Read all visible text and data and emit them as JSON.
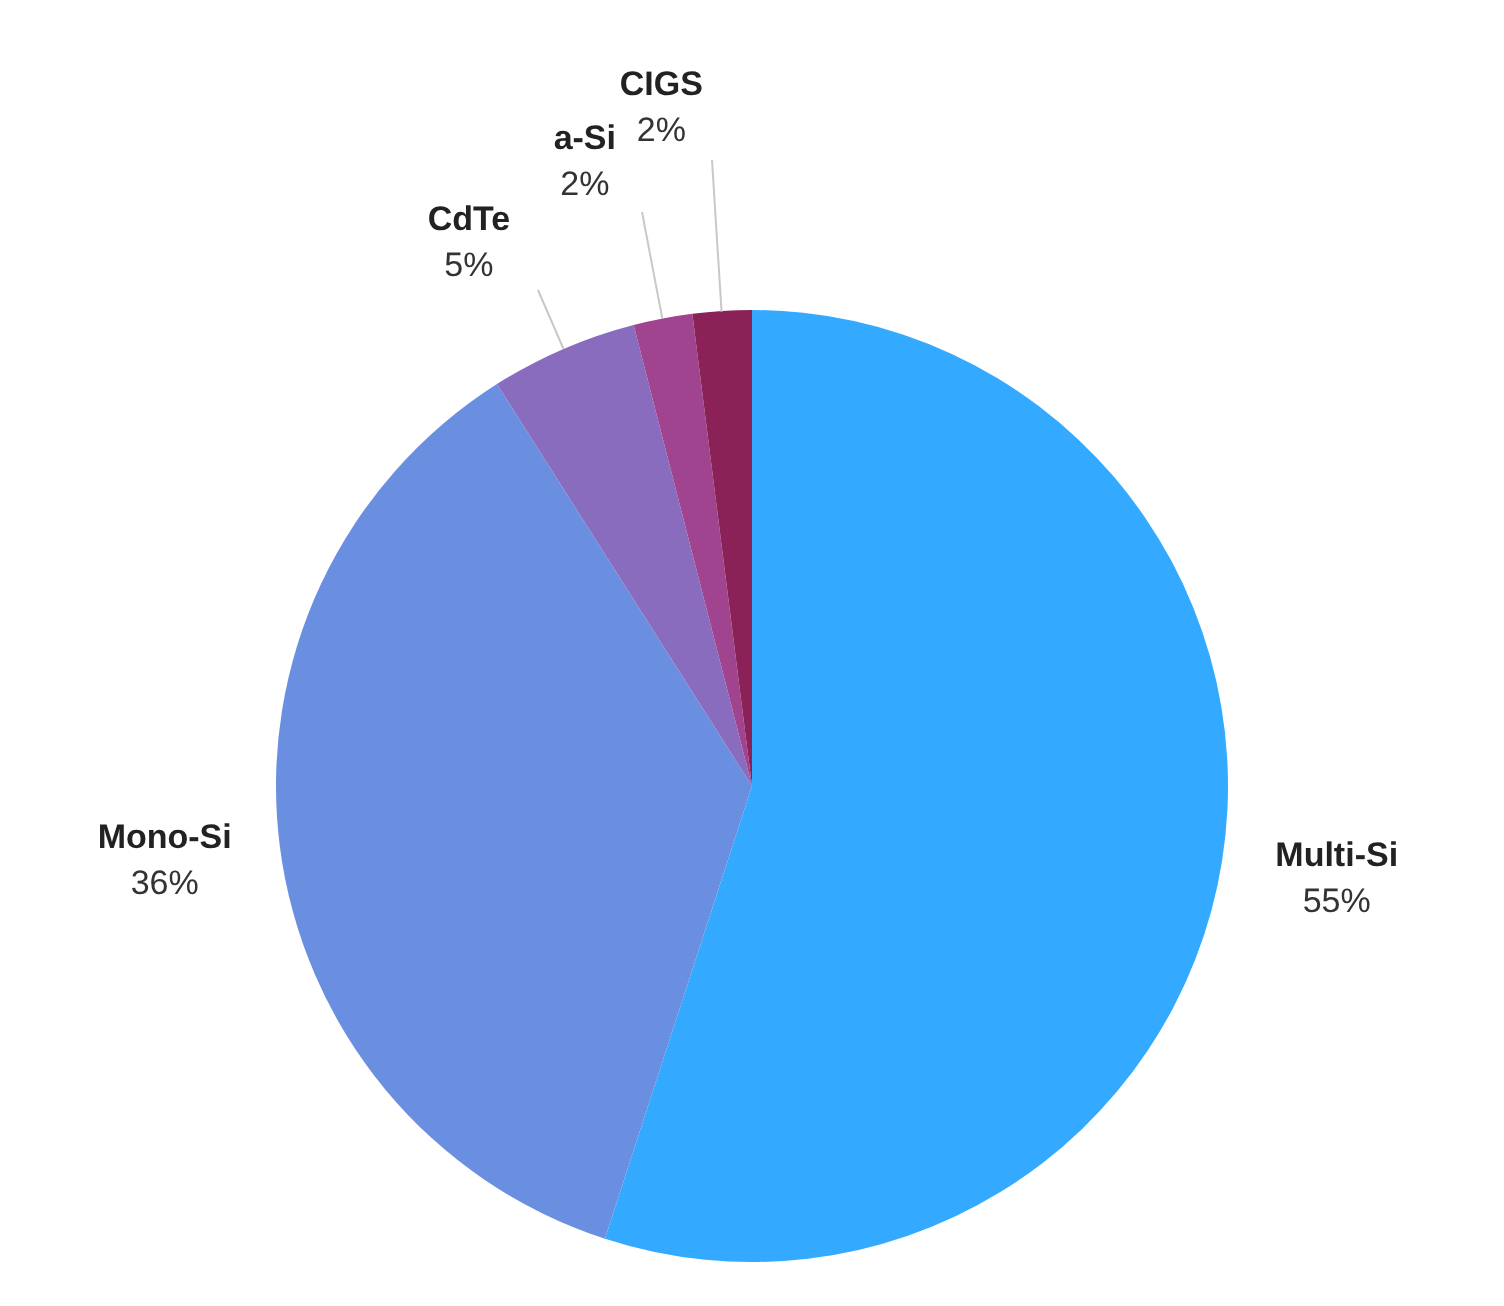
{
  "chart_data": {
    "type": "pie",
    "categories": [
      "Multi-Si",
      "Mono-Si",
      "CdTe",
      "a-Si",
      "CIGS"
    ],
    "values": [
      55,
      36,
      5,
      2,
      2
    ],
    "colors": [
      "#33aaff",
      "#6a8fe0",
      "#8a6cbf",
      "#a0448f",
      "#8a2258"
    ],
    "value_labels": [
      "55%",
      "36%",
      "5%",
      "2%",
      "2%"
    ],
    "legend": false
  }
}
